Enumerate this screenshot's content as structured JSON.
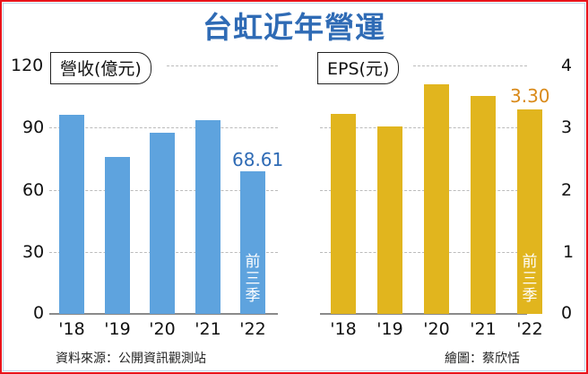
{
  "title": "台虹近年營運",
  "footer": {
    "source": "資料來源：公開資訊觀測站",
    "credit": "繪圖：蔡欣恬"
  },
  "colors": {
    "revenue_bar": "#5ea3de",
    "revenue_label": "#2f6bb5",
    "eps_bar": "#e1b51e",
    "eps_label": "#d98a1a",
    "title": "#2f6bb5",
    "border": "#e8141c"
  },
  "left_chart": {
    "pill_label": "營收(億元)",
    "ticks": [
      "120",
      "90",
      "60",
      "30",
      "0"
    ],
    "categories": [
      "'18",
      "'19",
      "'20",
      "'21",
      "'22"
    ],
    "highlight_value": "68.61",
    "note": "前三季"
  },
  "right_chart": {
    "pill_label": "EPS(元)",
    "ticks": [
      "4",
      "3",
      "2",
      "1",
      "0"
    ],
    "categories": [
      "'18",
      "'19",
      "'20",
      "'21",
      "'22"
    ],
    "highlight_value": "3.30",
    "note": "前三季"
  },
  "chart_data": [
    {
      "type": "bar",
      "title": "營收(億元)",
      "categories": [
        "'18",
        "'19",
        "'20",
        "'21",
        "'22"
      ],
      "values": [
        96.1,
        75.8,
        87.4,
        93.5,
        68.61
      ],
      "xlabel": "",
      "ylabel": "營收(億元)",
      "ylim": [
        0,
        120
      ],
      "yticks": [
        0,
        30,
        60,
        90,
        120
      ],
      "grid": true,
      "annotations": [
        "68.61",
        "前三季 ('22 covers first three quarters)"
      ],
      "axis_position": "left",
      "color": "#5ea3de"
    },
    {
      "type": "bar",
      "title": "EPS(元)",
      "categories": [
        "'18",
        "'19",
        "'20",
        "'21",
        "'22"
      ],
      "values": [
        3.21,
        3.02,
        3.69,
        3.5,
        3.3
      ],
      "xlabel": "",
      "ylabel": "EPS(元)",
      "ylim": [
        0,
        4
      ],
      "yticks": [
        0,
        1,
        2,
        3,
        4
      ],
      "grid": true,
      "annotations": [
        "3.30",
        "前三季 ('22 covers first three quarters)"
      ],
      "axis_position": "right",
      "color": "#e1b51e"
    }
  ]
}
